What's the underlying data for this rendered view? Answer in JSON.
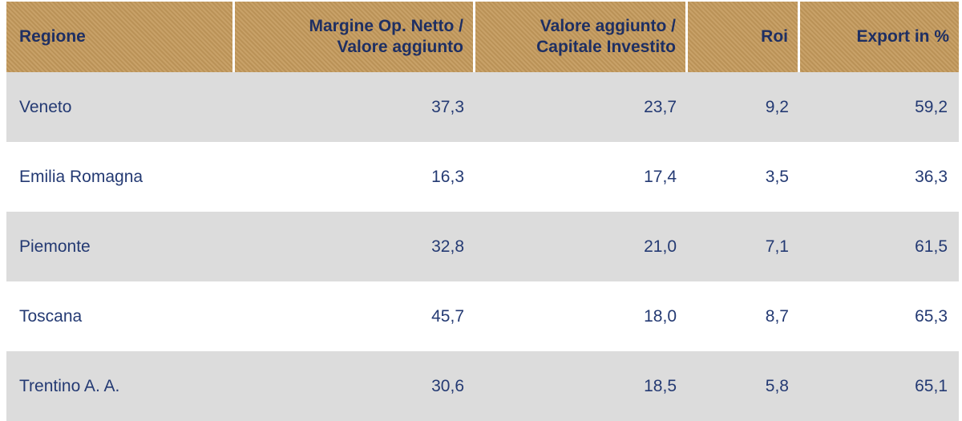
{
  "chart_data": {
    "type": "table",
    "columns": [
      "Regione",
      "Margine Op. Netto / Valore aggiunto",
      "Valore aggiunto / Capitale Investito",
      "Roi",
      "Export in %"
    ],
    "header_lines": [
      [
        "Regione"
      ],
      [
        "Margine Op. Netto /",
        "Valore aggiunto"
      ],
      [
        "Valore aggiunto /",
        "Capitale Investito"
      ],
      [
        "Roi"
      ],
      [
        "Export in %"
      ]
    ],
    "rows": [
      [
        "Veneto",
        "37,3",
        "23,7",
        "9,2",
        "59,2"
      ],
      [
        "Emilia Romagna",
        "16,3",
        "17,4",
        "3,5",
        "36,3"
      ],
      [
        "Piemonte",
        "32,8",
        "21,0",
        "7,1",
        "61,5"
      ],
      [
        "Toscana",
        "45,7",
        "18,0",
        "8,7",
        "65,3"
      ],
      [
        "Trentino A. A.",
        "30,6",
        "18,5",
        "5,8",
        "65,1"
      ]
    ],
    "colors": {
      "header_bg": "#c49a5c",
      "header_text": "#1e2f63",
      "row_shade": "#dcdcdc",
      "body_text": "#243a73"
    }
  }
}
